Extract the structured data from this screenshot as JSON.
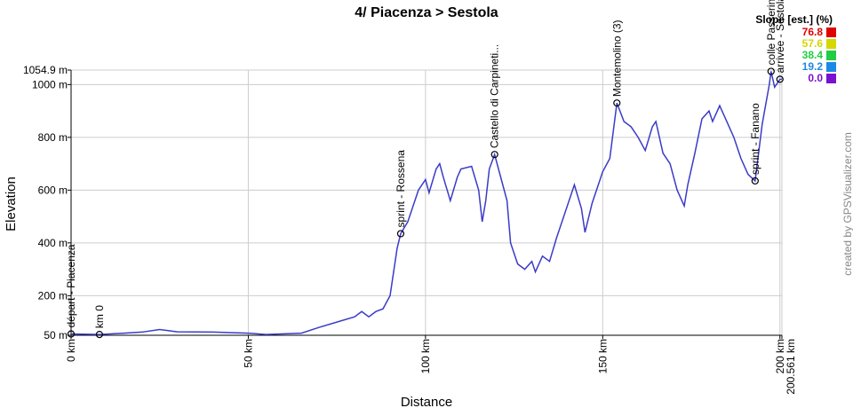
{
  "chart_data": {
    "type": "line",
    "title": "4/ Piacenza > Sestola",
    "x_label": "Distance",
    "y_label": "Elevation",
    "credit": "created by GPSVisualizer.com",
    "xlim": [
      0,
      200.561
    ],
    "ylim": [
      50,
      1054.9
    ],
    "xticks": [
      {
        "value": 0,
        "label": "0 km"
      },
      {
        "value": 50,
        "label": "50 km"
      },
      {
        "value": 100,
        "label": "100 km"
      },
      {
        "value": 150,
        "label": "150 km"
      },
      {
        "value": 200,
        "label": "200 km"
      },
      {
        "value": 200.561,
        "label": "200.561 km"
      }
    ],
    "yticks": [
      {
        "value": 50,
        "label": "50 m"
      },
      {
        "value": 200,
        "label": "200 m"
      },
      {
        "value": 400,
        "label": "400 m"
      },
      {
        "value": 600,
        "label": "600 m"
      },
      {
        "value": 800,
        "label": "800 m"
      },
      {
        "value": 1000,
        "label": "1000 m"
      },
      {
        "value": 1054.9,
        "label": "1054.9 m"
      }
    ],
    "grid": true,
    "series": [
      {
        "color": "#3b3bc8",
        "x": [
          0,
          8,
          15,
          20,
          25,
          30,
          40,
          50,
          55,
          65,
          70,
          75,
          80,
          82,
          84,
          86,
          88,
          90,
          92,
          93,
          95,
          98,
          100,
          101,
          103,
          104,
          105,
          107,
          109,
          110,
          113,
          115,
          116,
          117,
          118,
          119.5,
          121,
          123,
          124,
          126,
          128,
          130,
          131,
          133,
          135,
          137,
          140,
          142,
          144,
          145,
          147,
          150,
          152,
          154,
          156,
          158,
          160,
          162,
          164,
          165,
          167,
          169,
          171,
          173,
          174,
          176,
          178,
          180,
          181,
          183,
          185,
          187,
          189,
          191,
          193,
          195,
          197,
          197.5,
          198.5,
          200,
          200.561
        ],
        "values": [
          55,
          53,
          58,
          62,
          72,
          63,
          62,
          58,
          53,
          58,
          80,
          100,
          120,
          140,
          120,
          140,
          150,
          200,
          380,
          435,
          480,
          600,
          640,
          590,
          680,
          700,
          650,
          560,
          650,
          680,
          690,
          600,
          480,
          560,
          680,
          735,
          660,
          560,
          400,
          320,
          300,
          330,
          290,
          350,
          330,
          420,
          540,
          620,
          530,
          440,
          550,
          670,
          720,
          930,
          860,
          840,
          800,
          750,
          840,
          860,
          740,
          700,
          600,
          540,
          620,
          740,
          870,
          900,
          860,
          920,
          860,
          800,
          720,
          660,
          635,
          850,
          1000,
          1050,
          990,
          1020,
          1020
        ]
      }
    ],
    "waypoints": [
      {
        "x": 0,
        "y": 55,
        "label": "départ - Piacenza"
      },
      {
        "x": 8,
        "y": 53,
        "label": "km 0"
      },
      {
        "x": 93,
        "y": 435,
        "label": "sprint - Rossena"
      },
      {
        "x": 119.5,
        "y": 735,
        "label": "Castello di Carpineti..."
      },
      {
        "x": 154,
        "y": 930,
        "label": "Montemolino (3)"
      },
      {
        "x": 193,
        "y": 635,
        "label": "sprint - Fanano"
      },
      {
        "x": 197.5,
        "y": 1050,
        "label": "colle Passerino"
      },
      {
        "x": 200,
        "y": 1020,
        "label": "arrivée - Sestola"
      }
    ],
    "slope_legend": {
      "title": "Slope [est.] (%)",
      "values": [
        76.8,
        57.6,
        38.4,
        19.2,
        0
      ],
      "value_labels": [
        "76.8",
        "57.6",
        "38.4",
        "19.2",
        "0.0"
      ],
      "colors": [
        "#e00000",
        "#d6d600",
        "#22cc44",
        "#1e88e5",
        "#7a10d0"
      ]
    }
  }
}
